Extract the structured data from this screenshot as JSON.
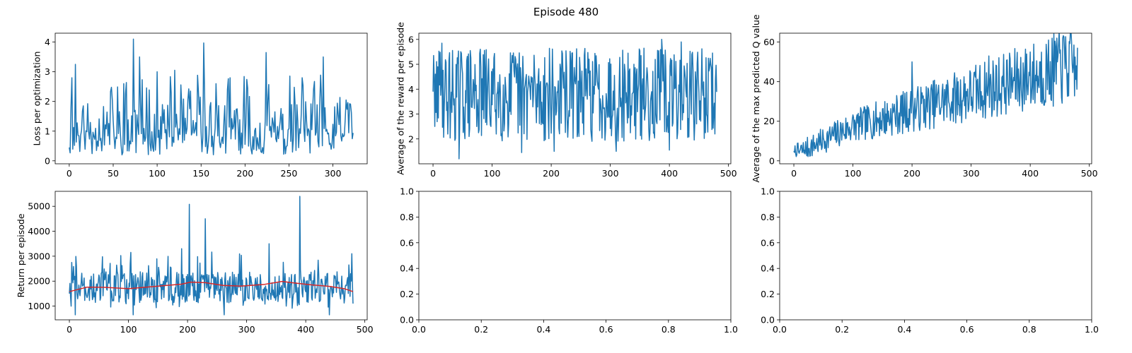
{
  "figure": {
    "suptitle": "Episode 480"
  },
  "colors": {
    "series": "#1f77b4",
    "smooth": "#d62728",
    "axis": "#000000",
    "background": "#ffffff"
  },
  "chart_data": [
    {
      "type": "line",
      "panel": "top-left",
      "title": "",
      "xlabel": "",
      "ylabel": "Loss per optimization",
      "xlim": [
        -16,
        339
      ],
      "ylim": [
        -0.1,
        4.3
      ],
      "xticks": [
        0,
        50,
        100,
        150,
        200,
        250,
        300
      ],
      "yticks": [
        0,
        1,
        2,
        3,
        4
      ],
      "gen": {
        "n": 324,
        "dx": 1,
        "type": "loss",
        "seed": 11
      },
      "series": [
        {
          "role": "main",
          "color": "#1f77b4",
          "spikes": [
            [
              3,
              2.8
            ],
            [
              7,
              3.25
            ],
            [
              62,
              2.6
            ],
            [
              73,
              4.1
            ],
            [
              80,
              3.5
            ],
            [
              100,
              3.0
            ],
            [
              120,
              3.05
            ],
            [
              138,
              2.35
            ],
            [
              153,
              3.97
            ],
            [
              167,
              2.6
            ],
            [
              183,
              2.8
            ],
            [
              224,
              3.65
            ],
            [
              265,
              2.8
            ],
            [
              289,
              3.5
            ],
            [
              315,
              2.05
            ]
          ]
        }
      ]
    },
    {
      "type": "line",
      "panel": "top-middle",
      "title": "",
      "xlabel": "",
      "ylabel": "Average of the reward per episode",
      "xlim": [
        -24,
        504
      ],
      "ylim": [
        1.0,
        6.25
      ],
      "xticks": [
        0,
        100,
        200,
        300,
        400,
        500
      ],
      "yticks": [
        2,
        3,
        4,
        5,
        6
      ],
      "gen": {
        "n": 481,
        "dx": 1,
        "type": "reward",
        "seed": 29
      },
      "series": [
        {
          "role": "main",
          "color": "#1f77b4",
          "spikes": [
            [
              0,
              3.9
            ],
            [
              3,
              2.5
            ],
            [
              8,
              4.9
            ],
            [
              15,
              5.85
            ],
            [
              44,
              1.2
            ],
            [
              150,
              1.45
            ],
            [
              205,
              1.5
            ],
            [
              310,
              1.5
            ],
            [
              387,
              6.0
            ],
            [
              400,
              1.55
            ],
            [
              420,
              5.9
            ],
            [
              478,
              4.4
            ]
          ]
        }
      ]
    },
    {
      "type": "line",
      "panel": "top-right",
      "title": "",
      "xlabel": "",
      "ylabel": "Average of the max predicted Q value",
      "xlim": [
        -24,
        504
      ],
      "ylim": [
        -1.5,
        64.5
      ],
      "xticks": [
        0,
        100,
        200,
        300,
        400,
        500
      ],
      "yticks": [
        0,
        20,
        40,
        60
      ],
      "gen": {
        "n": 481,
        "dx": 1,
        "type": "q",
        "seed": 7
      },
      "series": [
        {
          "role": "main",
          "color": "#1f77b4",
          "spikes": [
            [
              0,
              5.0
            ],
            [
              5,
              3.0
            ],
            [
              200,
              50.0
            ],
            [
              330,
              53.0
            ],
            [
              400,
              55.0
            ],
            [
              445,
              62.0
            ],
            [
              455,
              62.0
            ],
            [
              470,
              60.0
            ],
            [
              478,
              48.0
            ]
          ]
        }
      ]
    },
    {
      "type": "line",
      "panel": "bottom-left",
      "title": "",
      "xlabel": "",
      "ylabel": "Return per episode",
      "xlim": [
        -24,
        504
      ],
      "ylim": [
        450,
        5600
      ],
      "xticks": [
        0,
        100,
        200,
        300,
        400,
        500
      ],
      "yticks": [
        1000,
        2000,
        3000,
        4000,
        5000
      ],
      "gen": {
        "n": 481,
        "dx": 1,
        "type": "return",
        "seed": 53
      },
      "series": [
        {
          "role": "main",
          "color": "#1f77b4",
          "spikes": [
            [
              0,
              1500
            ],
            [
              4,
              2750
            ],
            [
              10,
              650
            ],
            [
              108,
              650
            ],
            [
              190,
              3300
            ],
            [
              203,
              5080
            ],
            [
              230,
              4500
            ],
            [
              262,
              650
            ],
            [
              338,
              3500
            ],
            [
              390,
              5400
            ],
            [
              440,
              650
            ],
            [
              478,
              3100
            ],
            [
              480,
              1100
            ]
          ]
        },
        {
          "role": "moving-average",
          "color": "#d62728",
          "x": [
            0,
            30,
            60,
            100,
            130,
            160,
            190,
            205,
            230,
            260,
            290,
            330,
            360,
            380,
            410,
            440,
            465,
            480
          ],
          "y": [
            1580,
            1760,
            1750,
            1700,
            1760,
            1820,
            1880,
            1960,
            1940,
            1830,
            1800,
            1870,
            1990,
            1930,
            1850,
            1790,
            1700,
            1580
          ]
        }
      ]
    },
    {
      "type": "line",
      "panel": "bottom-middle",
      "title": "",
      "xlabel": "",
      "ylabel": "",
      "xlim": [
        0,
        1
      ],
      "ylim": [
        0,
        1
      ],
      "xticks": [
        0.0,
        0.2,
        0.4,
        0.6,
        0.8,
        1.0
      ],
      "yticks": [
        0.0,
        0.2,
        0.4,
        0.6,
        0.8,
        1.0
      ],
      "tickfmt": "1f",
      "series": []
    },
    {
      "type": "line",
      "panel": "bottom-right",
      "title": "",
      "xlabel": "",
      "ylabel": "",
      "xlim": [
        0,
        1
      ],
      "ylim": [
        0,
        1
      ],
      "xticks": [
        0.0,
        0.2,
        0.4,
        0.6,
        0.8,
        1.0
      ],
      "yticks": [
        0.0,
        0.2,
        0.4,
        0.6,
        0.8,
        1.0
      ],
      "tickfmt": "1f",
      "series": []
    }
  ]
}
